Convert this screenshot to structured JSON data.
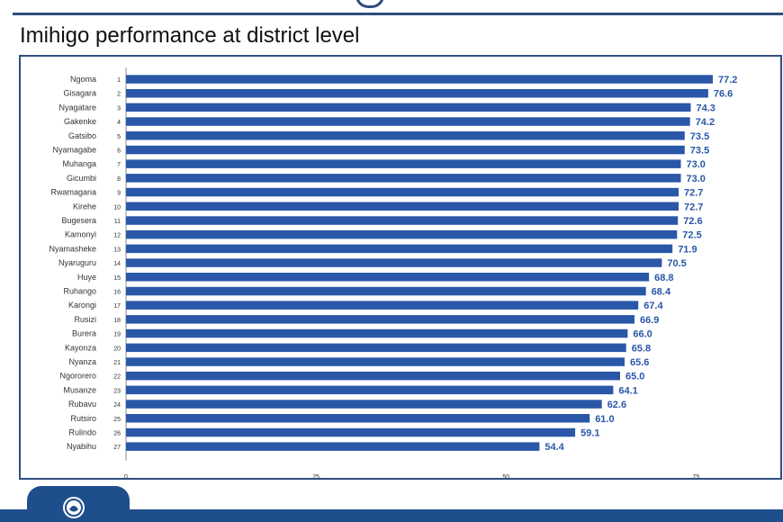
{
  "page": {
    "title": "Imihigo performance at district level"
  },
  "colors": {
    "bar": "#2a57a8",
    "label": "#2a57a8",
    "frame": "#2f4f80",
    "footer": "#1f4e8c",
    "axis": "#8f8f8f",
    "text": "#333333"
  },
  "chart_data": {
    "type": "bar",
    "orientation": "horizontal",
    "title": "Imihigo performance at district level",
    "xlabel": "",
    "ylabel": "",
    "xlim": [
      0,
      77.2
    ],
    "xticks": [
      0,
      25,
      50,
      75
    ],
    "grid": false,
    "legend": "none",
    "categories": [
      "Ngoma",
      "Gisagara",
      "Nyagatare",
      "Gakenke",
      "Gatsibo",
      "Nyamagabe",
      "Muhanga",
      "Gicumbi",
      "Rwamagana",
      "Kirehe",
      "Bugesera",
      "Kamonyi",
      "Nyamasheke",
      "Nyaruguru",
      "Huye",
      "Ruhango",
      "Karongi",
      "Rusizi",
      "Burera",
      "Kayonza",
      "Nyanza",
      "Ngororero",
      "Musanze",
      "Rubavu",
      "Rutsiro",
      "Rulindo",
      "Nyabihu"
    ],
    "ranks": [
      "1",
      "2",
      "3",
      "4",
      "5",
      "6",
      "7",
      "8",
      "9",
      "10",
      "11",
      "12",
      "13",
      "14",
      "15",
      "16",
      "17",
      "18",
      "19",
      "20",
      "21",
      "22",
      "23",
      "24",
      "25",
      "26",
      "27"
    ],
    "values": [
      77.2,
      76.6,
      74.3,
      74.2,
      73.5,
      73.5,
      73.0,
      73.0,
      72.7,
      72.7,
      72.6,
      72.5,
      71.9,
      70.5,
      68.8,
      68.4,
      67.4,
      66.9,
      66.0,
      65.8,
      65.6,
      65.0,
      64.1,
      62.6,
      61.0,
      59.1,
      54.4
    ],
    "labels": [
      "77.2",
      "76.6",
      "74.3",
      "74.2",
      "73.5",
      "73.5",
      "73.0",
      "73.0",
      "72.7",
      "72.7",
      "72.6",
      "72.5",
      "71.9",
      "70.5",
      "68.8",
      "68.4",
      "67.4",
      "66.9",
      "66.0",
      "65.8",
      "65.6",
      "65.0",
      "64.1",
      "62.6",
      "61.0",
      "59.1",
      "54.4"
    ]
  }
}
